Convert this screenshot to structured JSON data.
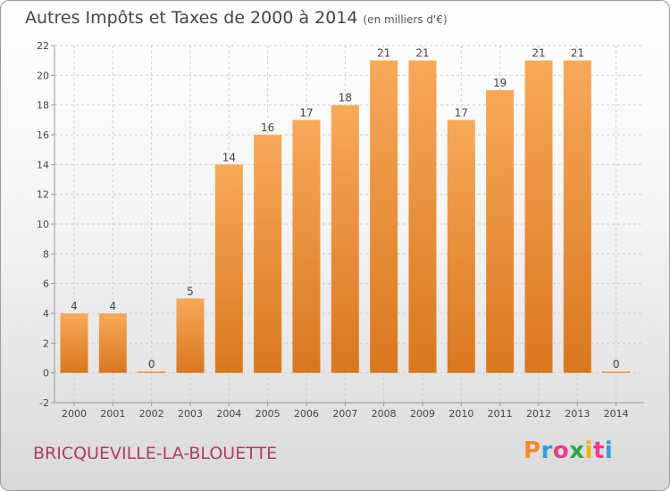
{
  "header": {
    "title": "Autres Impôts et Taxes de 2000 à 2014",
    "unit": "(en milliers d'€)"
  },
  "footer": {
    "commune": "BRICQUEVILLE-LA-BLOUETTE",
    "logo_letters": [
      "P",
      "r",
      "o",
      "x",
      "i",
      "t",
      "i"
    ],
    "logo_colors": [
      "#f28c28",
      "#3a9ad9",
      "#e83e8c",
      "#2aa84a",
      "#f5b400",
      "#e83e8c",
      "#3a9ad9"
    ]
  },
  "colors": {
    "bar_top": "#f7a95a",
    "bar_bottom": "#d9771e",
    "grid": "#cfcfcf",
    "axis": "#999999",
    "text": "#444444"
  },
  "chart_data": {
    "type": "bar",
    "title": "Autres Impôts et Taxes de 2000 à 2014",
    "xlabel": "",
    "ylabel": "",
    "categories": [
      "2000",
      "2001",
      "2002",
      "2003",
      "2004",
      "2005",
      "2006",
      "2007",
      "2008",
      "2009",
      "2010",
      "2011",
      "2012",
      "2013",
      "2014"
    ],
    "values": [
      4,
      4,
      0,
      5,
      14,
      16,
      17,
      18,
      21,
      21,
      17,
      19,
      21,
      21,
      0
    ],
    "ylim": [
      -2,
      22
    ],
    "yticks": [
      -2,
      0,
      2,
      4,
      6,
      8,
      10,
      12,
      14,
      16,
      18,
      20,
      22
    ],
    "grid": true,
    "data_labels": true
  }
}
